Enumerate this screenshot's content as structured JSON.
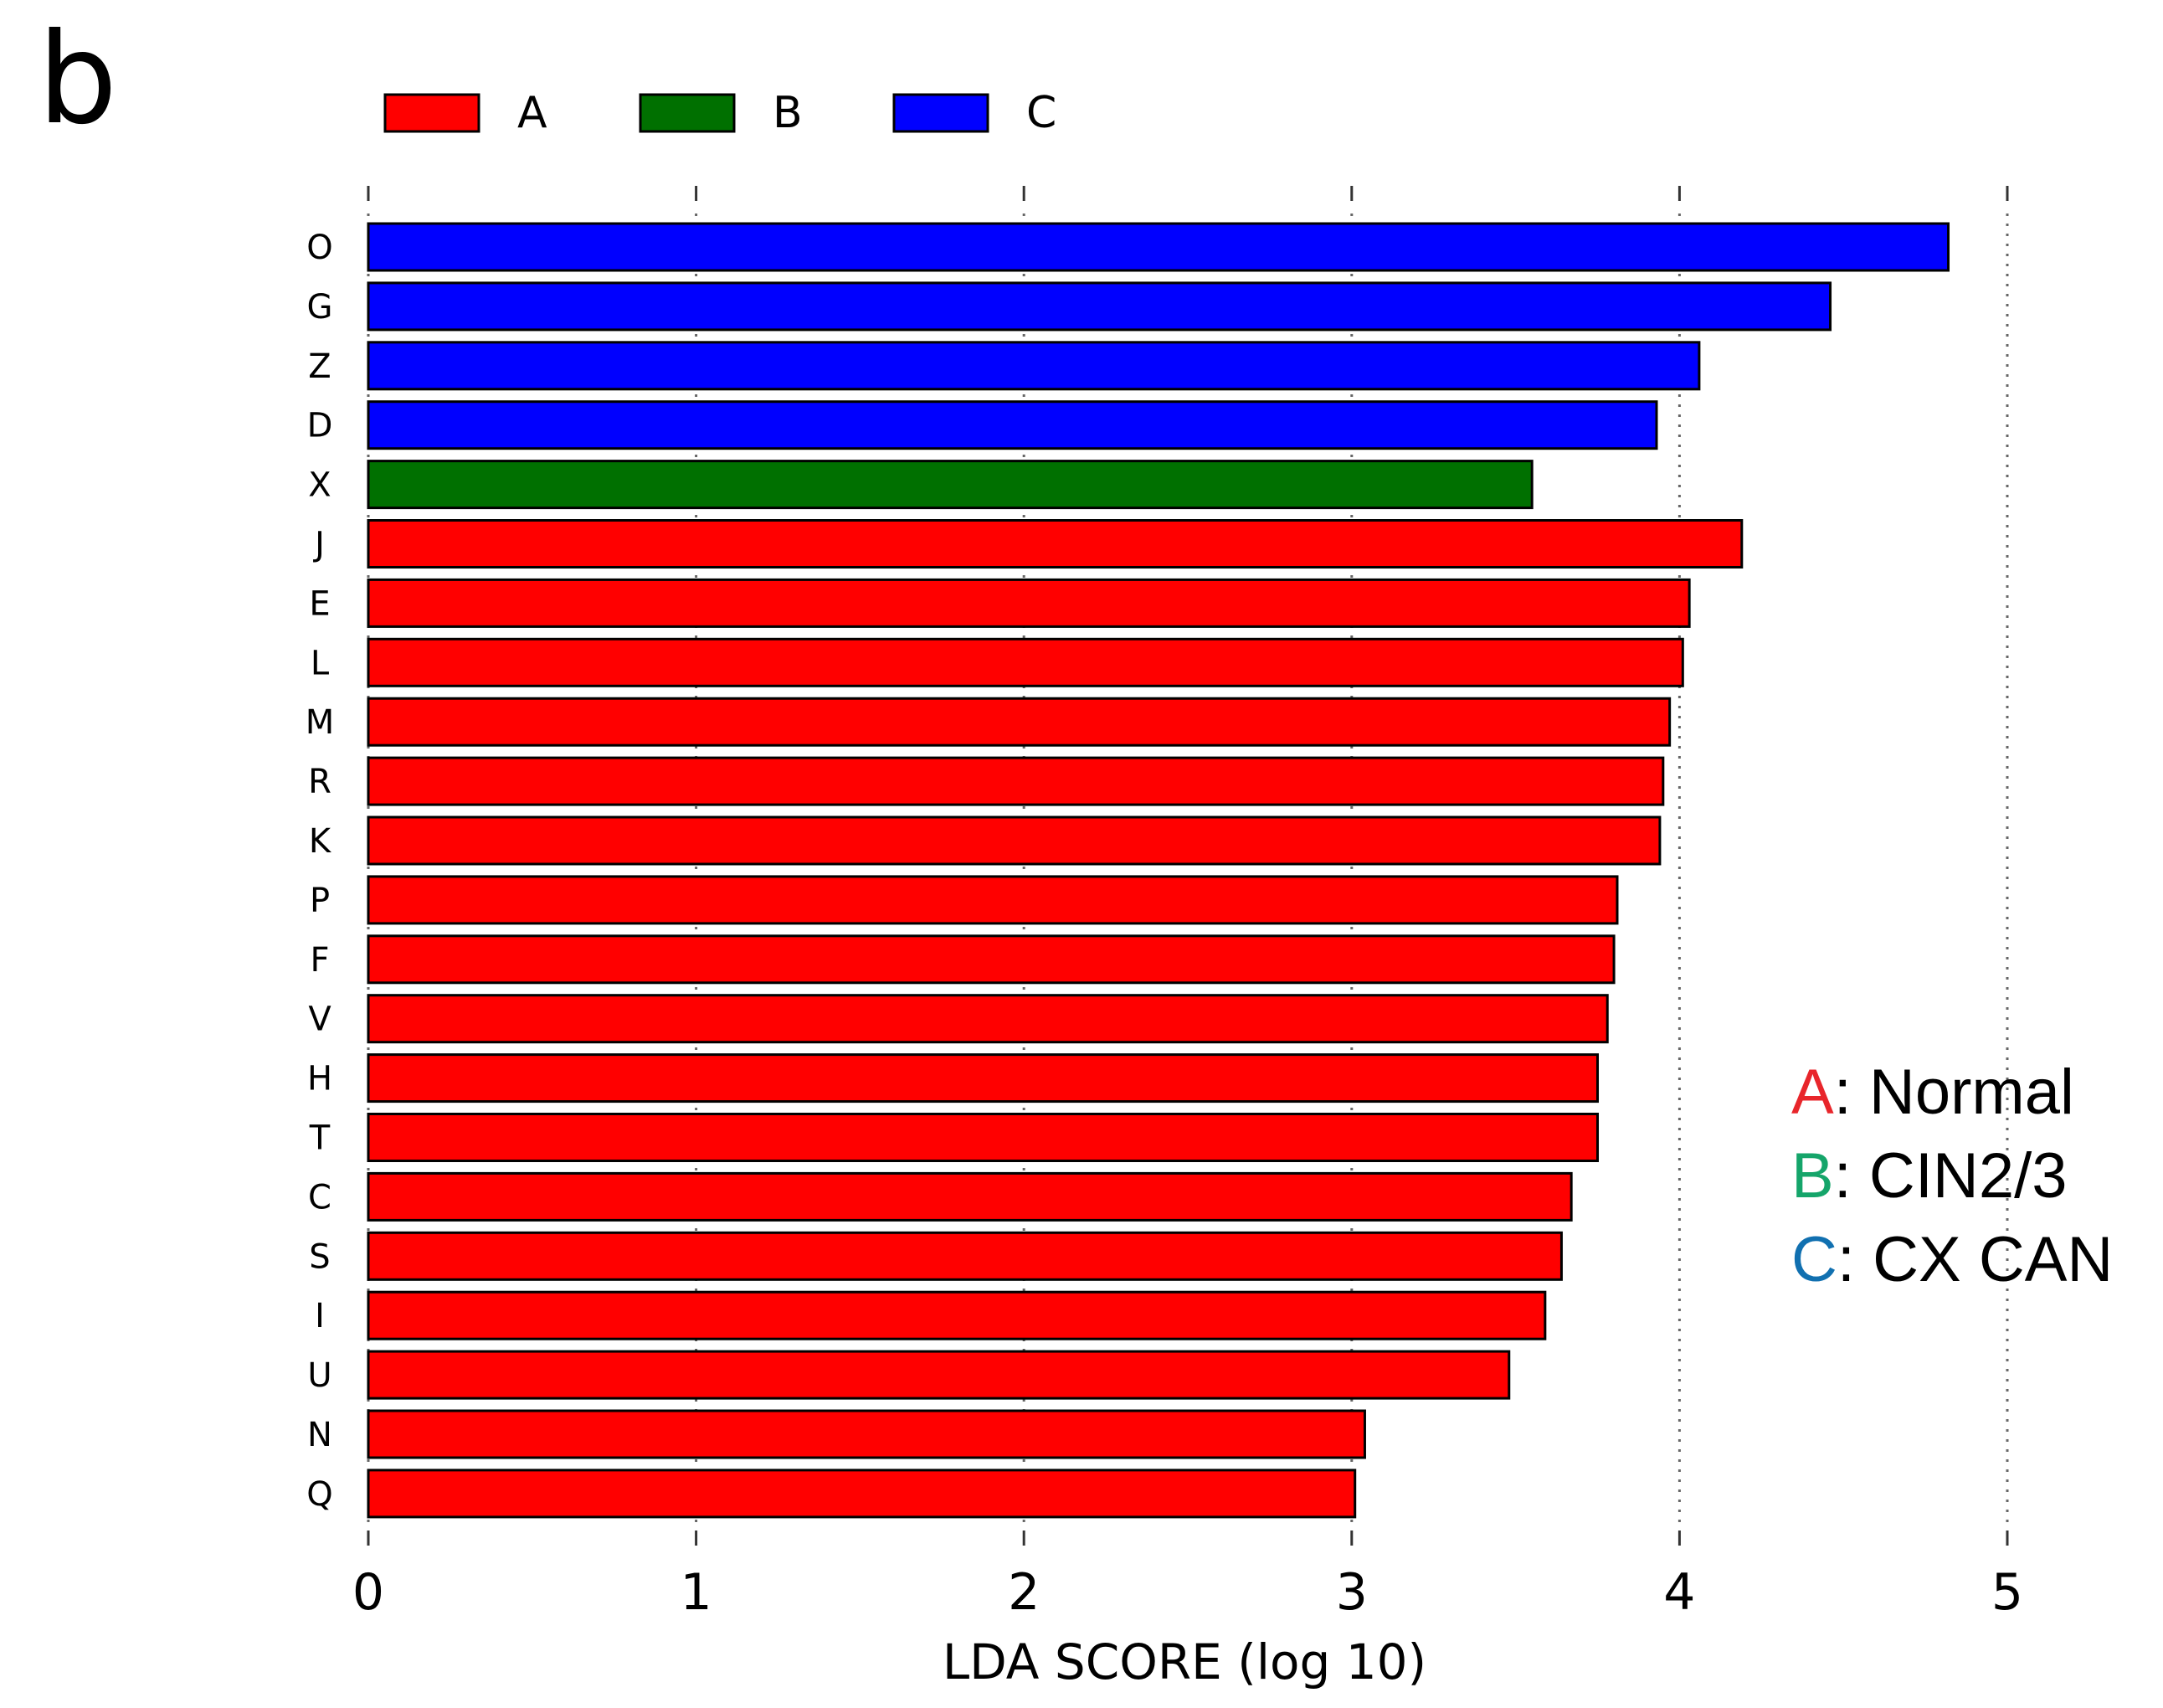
{
  "panel_label": "b",
  "chart_data": {
    "type": "bar",
    "orientation": "horizontal",
    "xlabel": "LDA SCORE (log 10)",
    "xlim": [
      0,
      5
    ],
    "xticks": [
      "0",
      "1",
      "2",
      "3",
      "4",
      "5"
    ],
    "grid": "vertical dotted",
    "legend_position": "top-left",
    "legend": [
      {
        "name": "A",
        "color": "#ff0000"
      },
      {
        "name": "B",
        "color": "#007000"
      },
      {
        "name": "C",
        "color": "#0000ff"
      }
    ],
    "categories": [
      "O",
      "G",
      "Z",
      "D",
      "X",
      "J",
      "E",
      "L",
      "M",
      "R",
      "K",
      "P",
      "F",
      "V",
      "H",
      "T",
      "C",
      "S",
      "I",
      "U",
      "N",
      "Q"
    ],
    "values": [
      4.82,
      4.46,
      4.06,
      3.93,
      3.55,
      4.19,
      4.03,
      4.01,
      3.97,
      3.95,
      3.94,
      3.81,
      3.8,
      3.78,
      3.75,
      3.75,
      3.67,
      3.64,
      3.59,
      3.48,
      3.04,
      3.01
    ],
    "groups": [
      "C",
      "C",
      "C",
      "C",
      "B",
      "A",
      "A",
      "A",
      "A",
      "A",
      "A",
      "A",
      "A",
      "A",
      "A",
      "A",
      "A",
      "A",
      "A",
      "A",
      "A",
      "A"
    ]
  },
  "annotation": [
    {
      "key": "A",
      "key_color": "#e8262b",
      "text": ": Normal"
    },
    {
      "key": "B",
      "key_color": "#15a56a",
      "text": ": CIN2/3"
    },
    {
      "key": "C",
      "key_color": "#1170b0",
      "text": ": CX CAN"
    }
  ]
}
